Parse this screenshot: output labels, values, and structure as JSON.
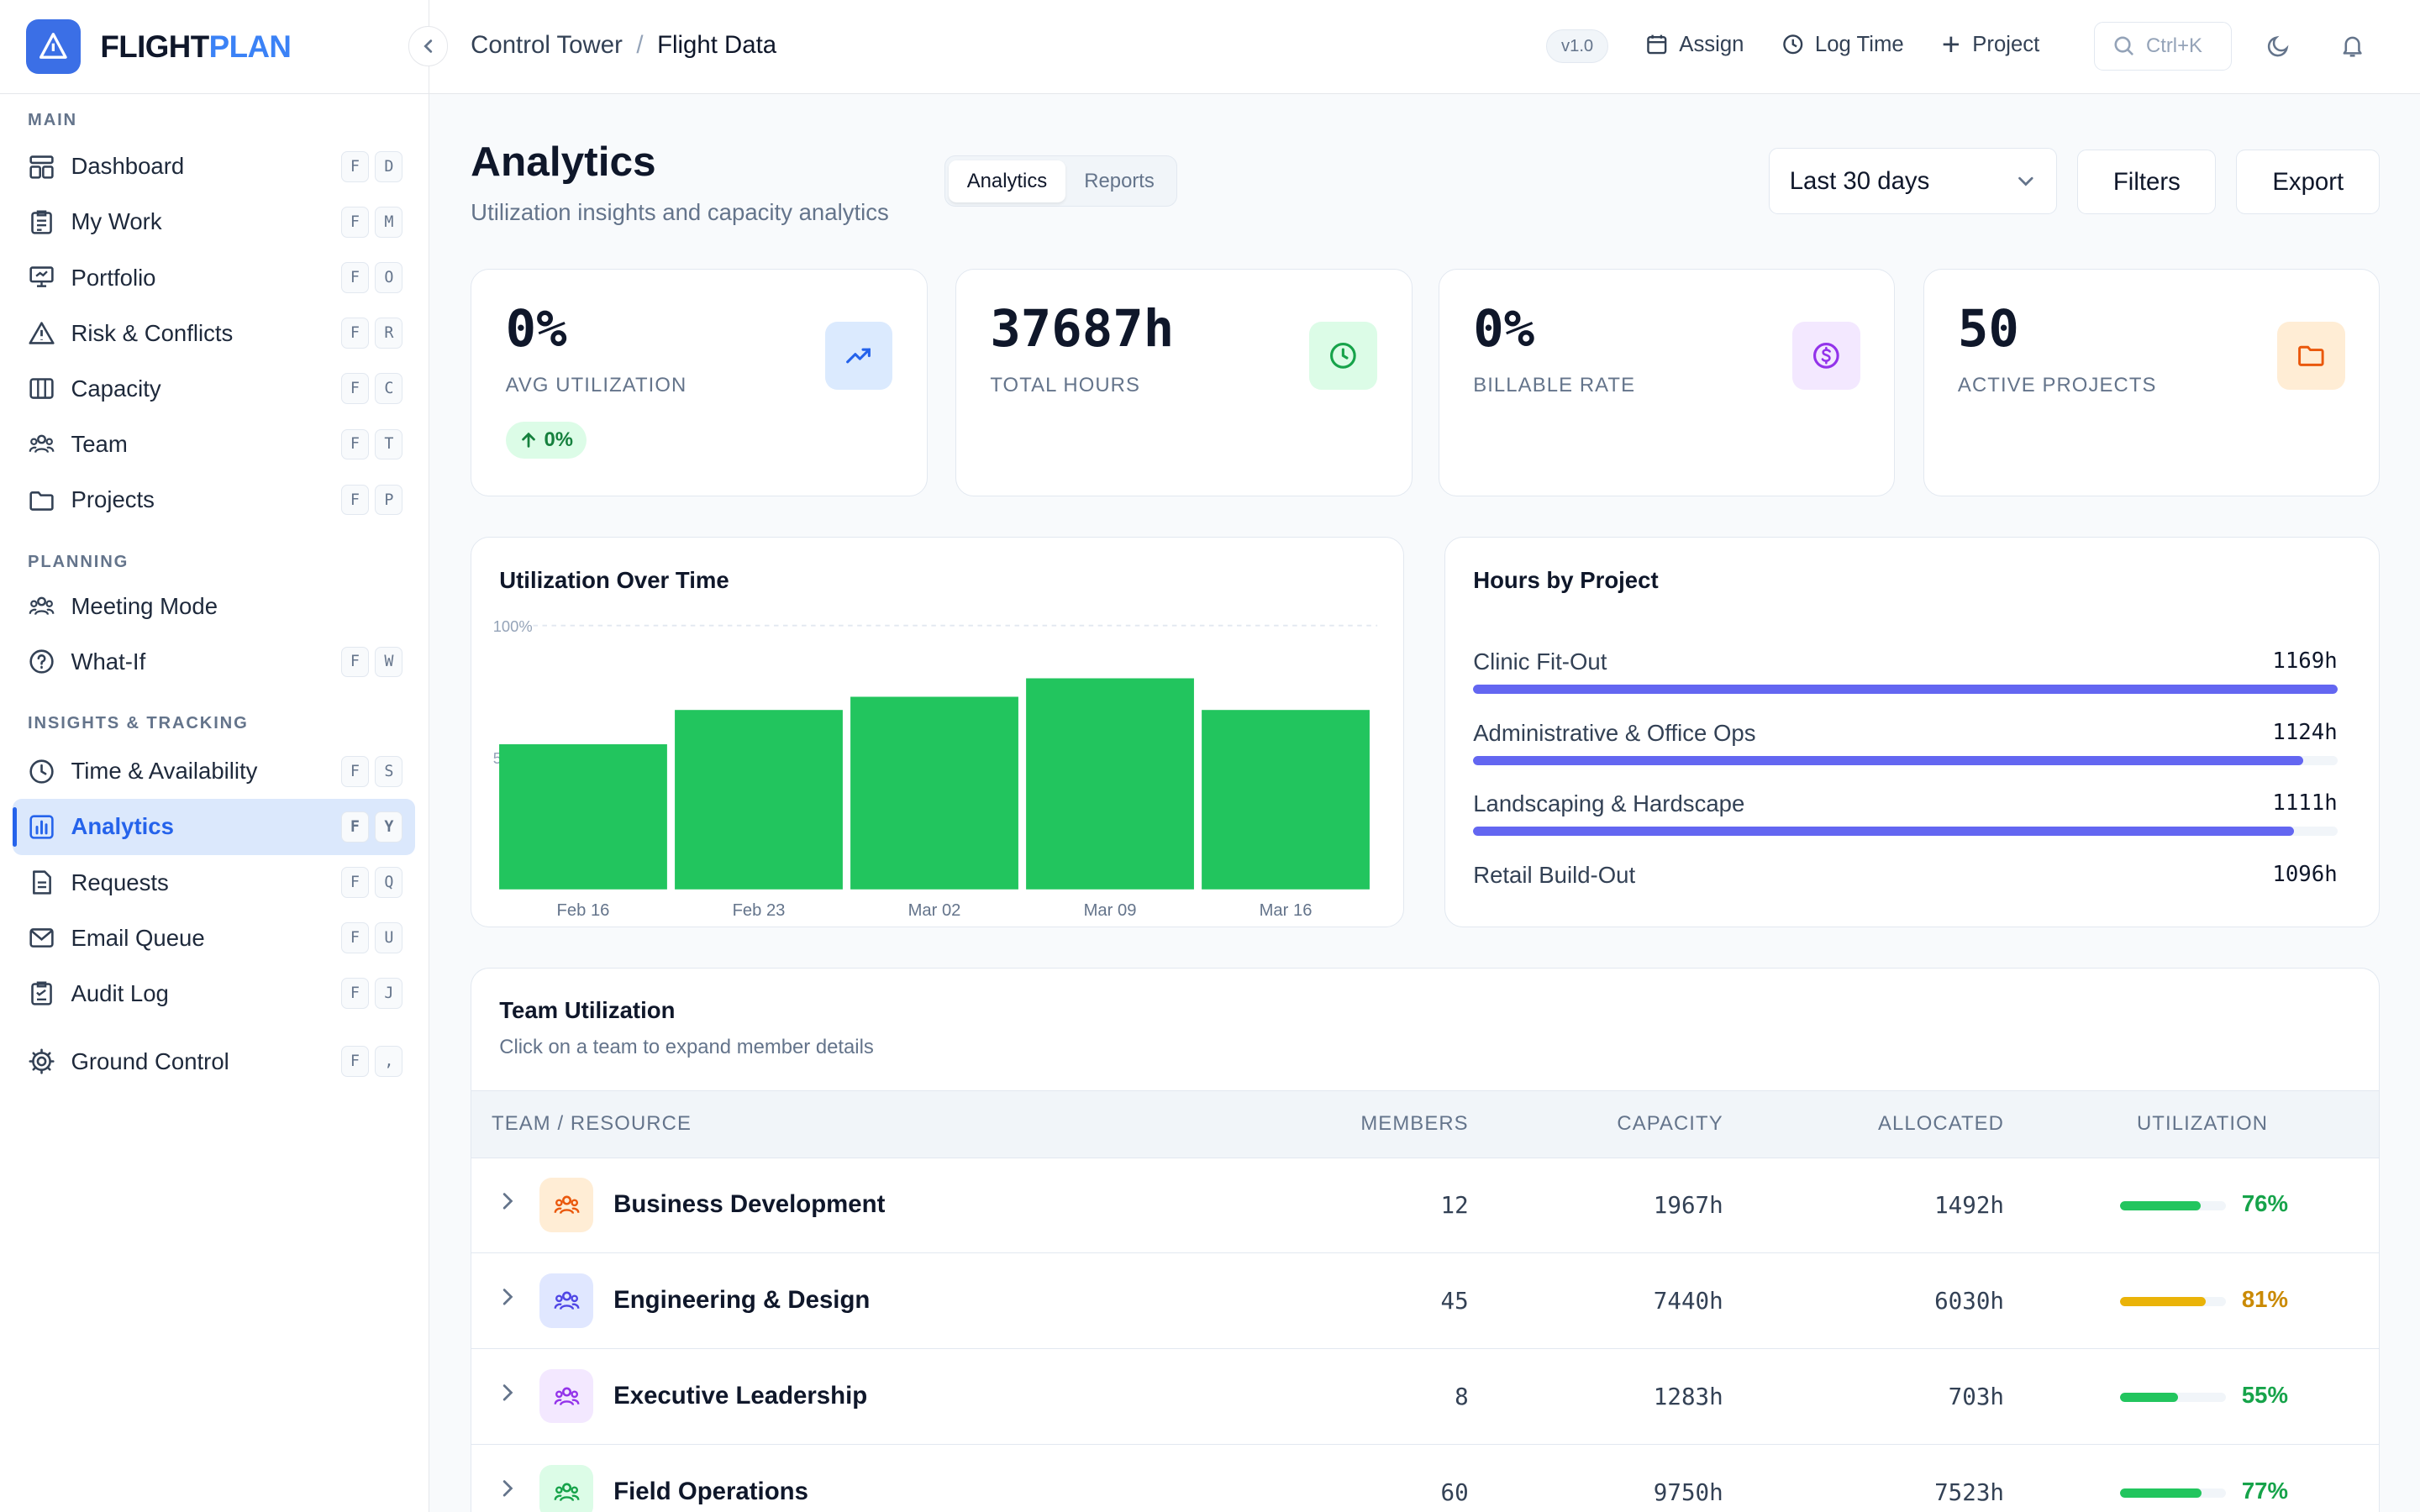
{
  "brand": {
    "name_a": "FLIGHT",
    "name_b": "PLAN"
  },
  "sidebar": {
    "sections": [
      "MAIN",
      "PLANNING",
      "INSIGHTS & TRACKING"
    ],
    "items": [
      {
        "label": "Dashboard",
        "keys": [
          "F",
          "D"
        ]
      },
      {
        "label": "My Work",
        "keys": [
          "F",
          "M"
        ]
      },
      {
        "label": "Portfolio",
        "keys": [
          "F",
          "O"
        ]
      },
      {
        "label": "Risk & Conflicts",
        "keys": [
          "F",
          "R"
        ]
      },
      {
        "label": "Capacity",
        "keys": [
          "F",
          "C"
        ]
      },
      {
        "label": "Team",
        "keys": [
          "F",
          "T"
        ]
      },
      {
        "label": "Projects",
        "keys": [
          "F",
          "P"
        ]
      },
      {
        "label": "Meeting Mode",
        "keys": []
      },
      {
        "label": "What-If",
        "keys": [
          "F",
          "W"
        ]
      },
      {
        "label": "Time & Availability",
        "keys": [
          "F",
          "S"
        ]
      },
      {
        "label": "Analytics",
        "keys": [
          "F",
          "Y"
        ]
      },
      {
        "label": "Requests",
        "keys": [
          "F",
          "Q"
        ]
      },
      {
        "label": "Email Queue",
        "keys": [
          "F",
          "U"
        ]
      },
      {
        "label": "Audit Log",
        "keys": [
          "F",
          "J"
        ]
      },
      {
        "label": "Ground Control",
        "keys": [
          "F",
          ","
        ]
      }
    ]
  },
  "topbar": {
    "crumb_root": "Control Tower",
    "crumb_sep": "/",
    "crumb_current": "Flight Data",
    "version": "v1.0",
    "assign": "Assign",
    "log_time": "Log Time",
    "project": "Project",
    "search_hint": "Ctrl+K"
  },
  "page": {
    "title": "Analytics",
    "subtitle": "Utilization insights and capacity analytics",
    "tabs": [
      "Analytics",
      "Reports"
    ],
    "range": "Last 30 days",
    "filters": "Filters",
    "export": "Export"
  },
  "stats": [
    {
      "value": "0%",
      "label": "AVG UTILIZATION",
      "trend": "0%",
      "color": "#2563eb"
    },
    {
      "value": "37687h",
      "label": "TOTAL HOURS",
      "color": "#16a34a"
    },
    {
      "value": "0%",
      "label": "BILLABLE RATE",
      "color": "#9333ea"
    },
    {
      "value": "50",
      "label": "ACTIVE PROJECTS",
      "color": "#ea580c"
    }
  ],
  "chart_data": {
    "type": "bar",
    "title": "Utilization Over Time",
    "categories": [
      "Feb 16",
      "Feb 23",
      "Mar 02",
      "Mar 09",
      "Mar 16"
    ],
    "values": [
      55,
      68,
      73,
      80,
      68
    ],
    "ylim": [
      0,
      100
    ],
    "yticks": [
      "100%",
      "50%"
    ],
    "color": "#22c55e"
  },
  "hours_by_project": {
    "title": "Hours by Project",
    "items": [
      {
        "name": "Clinic Fit-Out",
        "value": "1169h",
        "fraction": 1.0
      },
      {
        "name": "Administrative & Office Ops",
        "value": "1124h",
        "fraction": 0.96
      },
      {
        "name": "Landscaping & Hardscape",
        "value": "1111h",
        "fraction": 0.95
      },
      {
        "name": "Retail Build-Out",
        "value": "1096h",
        "fraction": 0.94
      }
    ]
  },
  "team_table": {
    "title": "Team Utilization",
    "subtitle": "Click on a team to expand member details",
    "columns": [
      "TEAM / RESOURCE",
      "MEMBERS",
      "CAPACITY",
      "ALLOCATED",
      "UTILIZATION"
    ],
    "rows": [
      {
        "team": "Business Development",
        "members": "12",
        "capacity": "1967h",
        "allocated": "1492h",
        "utilization": "76%",
        "util_value": 0.76,
        "color": "#22c55e",
        "pct_color": "#16a34a",
        "icon_bg": "#ffedd5",
        "icon_color": "#ea580c"
      },
      {
        "team": "Engineering & Design",
        "members": "45",
        "capacity": "7440h",
        "allocated": "6030h",
        "utilization": "81%",
        "util_value": 0.81,
        "color": "#eab308",
        "pct_color": "#ca8a04",
        "icon_bg": "#e0e7ff",
        "icon_color": "#4f46e5"
      },
      {
        "team": "Executive Leadership",
        "members": "8",
        "capacity": "1283h",
        "allocated": "703h",
        "utilization": "55%",
        "util_value": 0.55,
        "color": "#22c55e",
        "pct_color": "#16a34a",
        "icon_bg": "#f3e8ff",
        "icon_color": "#9333ea"
      },
      {
        "team": "Field Operations",
        "members": "60",
        "capacity": "9750h",
        "allocated": "7523h",
        "utilization": "77%",
        "util_value": 0.77,
        "color": "#22c55e",
        "pct_color": "#16a34a",
        "icon_bg": "#dcfce7",
        "icon_color": "#16a34a"
      }
    ]
  }
}
